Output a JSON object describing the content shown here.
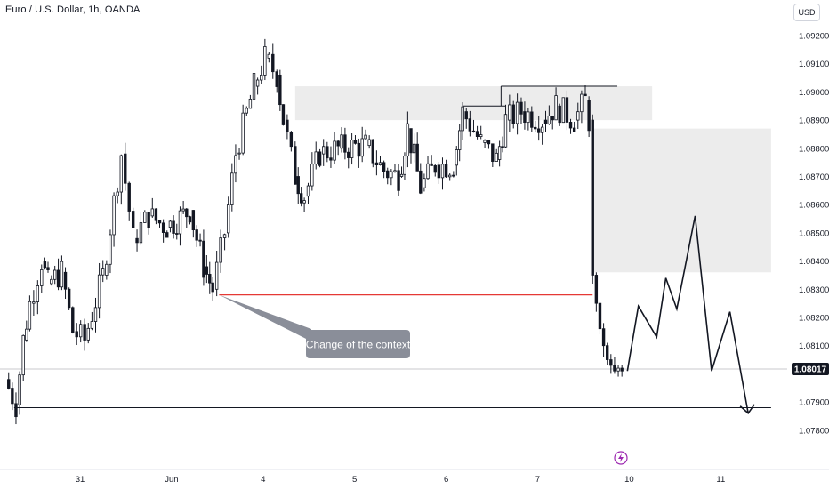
{
  "header": {
    "title": "Euro / U.S. Dollar, 1h, OANDA",
    "currency_button": "USD"
  },
  "colors": {
    "candle": "#131722",
    "red_line": "#e53935",
    "zone": "#ececec",
    "price_tag": "#131722",
    "callout_bg": "#8a8e99",
    "event_icon": "#9c27b0"
  },
  "icons": {
    "event": "lightning-icon"
  },
  "chart_data": {
    "type": "candlestick",
    "symbol": "EUR/USD",
    "interval": "1h",
    "ylim": [
      1.0775,
      1.0935
    ],
    "y_ticks": [
      "1.09200",
      "1.09100",
      "1.09000",
      "1.08900",
      "1.08800",
      "1.08700",
      "1.08600",
      "1.08500",
      "1.08400",
      "1.08300",
      "1.08200",
      "1.08100",
      "1.07900",
      "1.07800"
    ],
    "x_ticks": [
      {
        "label": "31",
        "pos": 0.0
      },
      {
        "label": "Jun",
        "pos": 1.0
      },
      {
        "label": "4",
        "pos": 2.0
      },
      {
        "label": "5",
        "pos": 3.0
      },
      {
        "label": "6",
        "pos": 4.0
      },
      {
        "label": "7",
        "pos": 5.0
      },
      {
        "label": "10",
        "pos": 6.0
      },
      {
        "label": "11",
        "pos": 7.0
      }
    ],
    "current_price": "1.08017",
    "keypoints": [
      [
        -0.82,
        1.0798
      ],
      [
        -0.7,
        1.0789
      ],
      [
        -0.62,
        1.0812
      ],
      [
        -0.55,
        1.0825
      ],
      [
        -0.42,
        1.084
      ],
      [
        -0.35,
        1.0832
      ],
      [
        -0.2,
        1.0836
      ],
      [
        -0.08,
        1.0815
      ],
      [
        0.05,
        1.0812
      ],
      [
        0.25,
        1.0835
      ],
      [
        0.45,
        1.0878
      ],
      [
        0.58,
        1.0848
      ],
      [
        0.75,
        1.0856
      ],
      [
        0.95,
        1.0852
      ],
      [
        1.2,
        1.0858
      ],
      [
        1.35,
        1.0838
      ],
      [
        1.45,
        1.083
      ],
      [
        1.58,
        1.085
      ],
      [
        1.7,
        1.0878
      ],
      [
        1.9,
        1.0902
      ],
      [
        2.02,
        1.0912
      ],
      [
        2.15,
        1.0906
      ],
      [
        2.22,
        1.089
      ],
      [
        2.35,
        1.087
      ],
      [
        2.45,
        1.0863
      ],
      [
        2.62,
        1.0878
      ],
      [
        2.82,
        1.088
      ],
      [
        3.12,
        1.0881
      ],
      [
        3.32,
        1.0872
      ],
      [
        3.48,
        1.087
      ],
      [
        3.58,
        1.0887
      ],
      [
        3.72,
        1.0866
      ],
      [
        3.88,
        1.0874
      ],
      [
        4.08,
        1.0874
      ],
      [
        4.18,
        1.0893
      ],
      [
        4.38,
        1.0882
      ],
      [
        4.55,
        1.0876
      ],
      [
        4.65,
        1.089
      ],
      [
        4.82,
        1.0893
      ],
      [
        5.05,
        1.089
      ],
      [
        5.2,
        1.0895
      ],
      [
        5.4,
        1.089
      ],
      [
        5.52,
        1.0897
      ],
      [
        5.56,
        1.089
      ]
    ],
    "seed_candles_after_drop": [
      {
        "x": 5.6,
        "o": 1.089,
        "h": 1.0892,
        "l": 1.0832,
        "c": 1.0835
      },
      {
        "x": 5.64,
        "o": 1.0835,
        "h": 1.0836,
        "l": 1.0822,
        "c": 1.0825
      },
      {
        "x": 5.68,
        "o": 1.0825,
        "h": 1.0826,
        "l": 1.0814,
        "c": 1.0816
      },
      {
        "x": 5.72,
        "o": 1.0816,
        "h": 1.0818,
        "l": 1.0806,
        "c": 1.081
      },
      {
        "x": 5.76,
        "o": 1.081,
        "h": 1.0811,
        "l": 1.0803,
        "c": 1.0805
      },
      {
        "x": 5.8,
        "o": 1.0805,
        "h": 1.0807,
        "l": 1.08,
        "c": 1.0803
      },
      {
        "x": 5.84,
        "o": 1.0803,
        "h": 1.0806,
        "l": 1.08,
        "c": 1.0801
      },
      {
        "x": 5.88,
        "o": 1.0801,
        "h": 1.0803,
        "l": 1.0799,
        "c": 1.0802
      },
      {
        "x": 5.92,
        "o": 1.0802,
        "h": 1.0803,
        "l": 1.0799,
        "c": 1.0801
      }
    ],
    "annotations": {
      "supply_zone_top": {
        "x0": 2.35,
        "x1": 6.25,
        "y0": 1.089,
        "y1": 1.0902
      },
      "supply_zone_right": {
        "x0": 5.6,
        "x1": 7.55,
        "y0": 1.0836,
        "y1": 1.0887
      },
      "high_line_1": {
        "x0": 4.18,
        "x1": 4.65,
        "y": 1.0895
      },
      "high_line_2": {
        "x0": 4.6,
        "x1": 5.87,
        "y": 1.0902
      },
      "change_of_context_level": {
        "x0": 1.52,
        "x1": 5.6,
        "y": 1.0828
      },
      "low_line": {
        "x0": -0.72,
        "x1": 7.55,
        "y": 1.0788
      },
      "current_price_line_y": 1.08017,
      "callout_text": "Change of the context",
      "projection_path": [
        [
          5.98,
          1.0801
        ],
        [
          6.1,
          1.0824
        ],
        [
          6.3,
          1.0813
        ],
        [
          6.4,
          1.0834
        ],
        [
          6.52,
          1.0823
        ],
        [
          6.72,
          1.0856
        ],
        [
          6.9,
          1.0801
        ],
        [
          7.1,
          1.0822
        ],
        [
          7.3,
          1.0786
        ]
      ]
    }
  }
}
